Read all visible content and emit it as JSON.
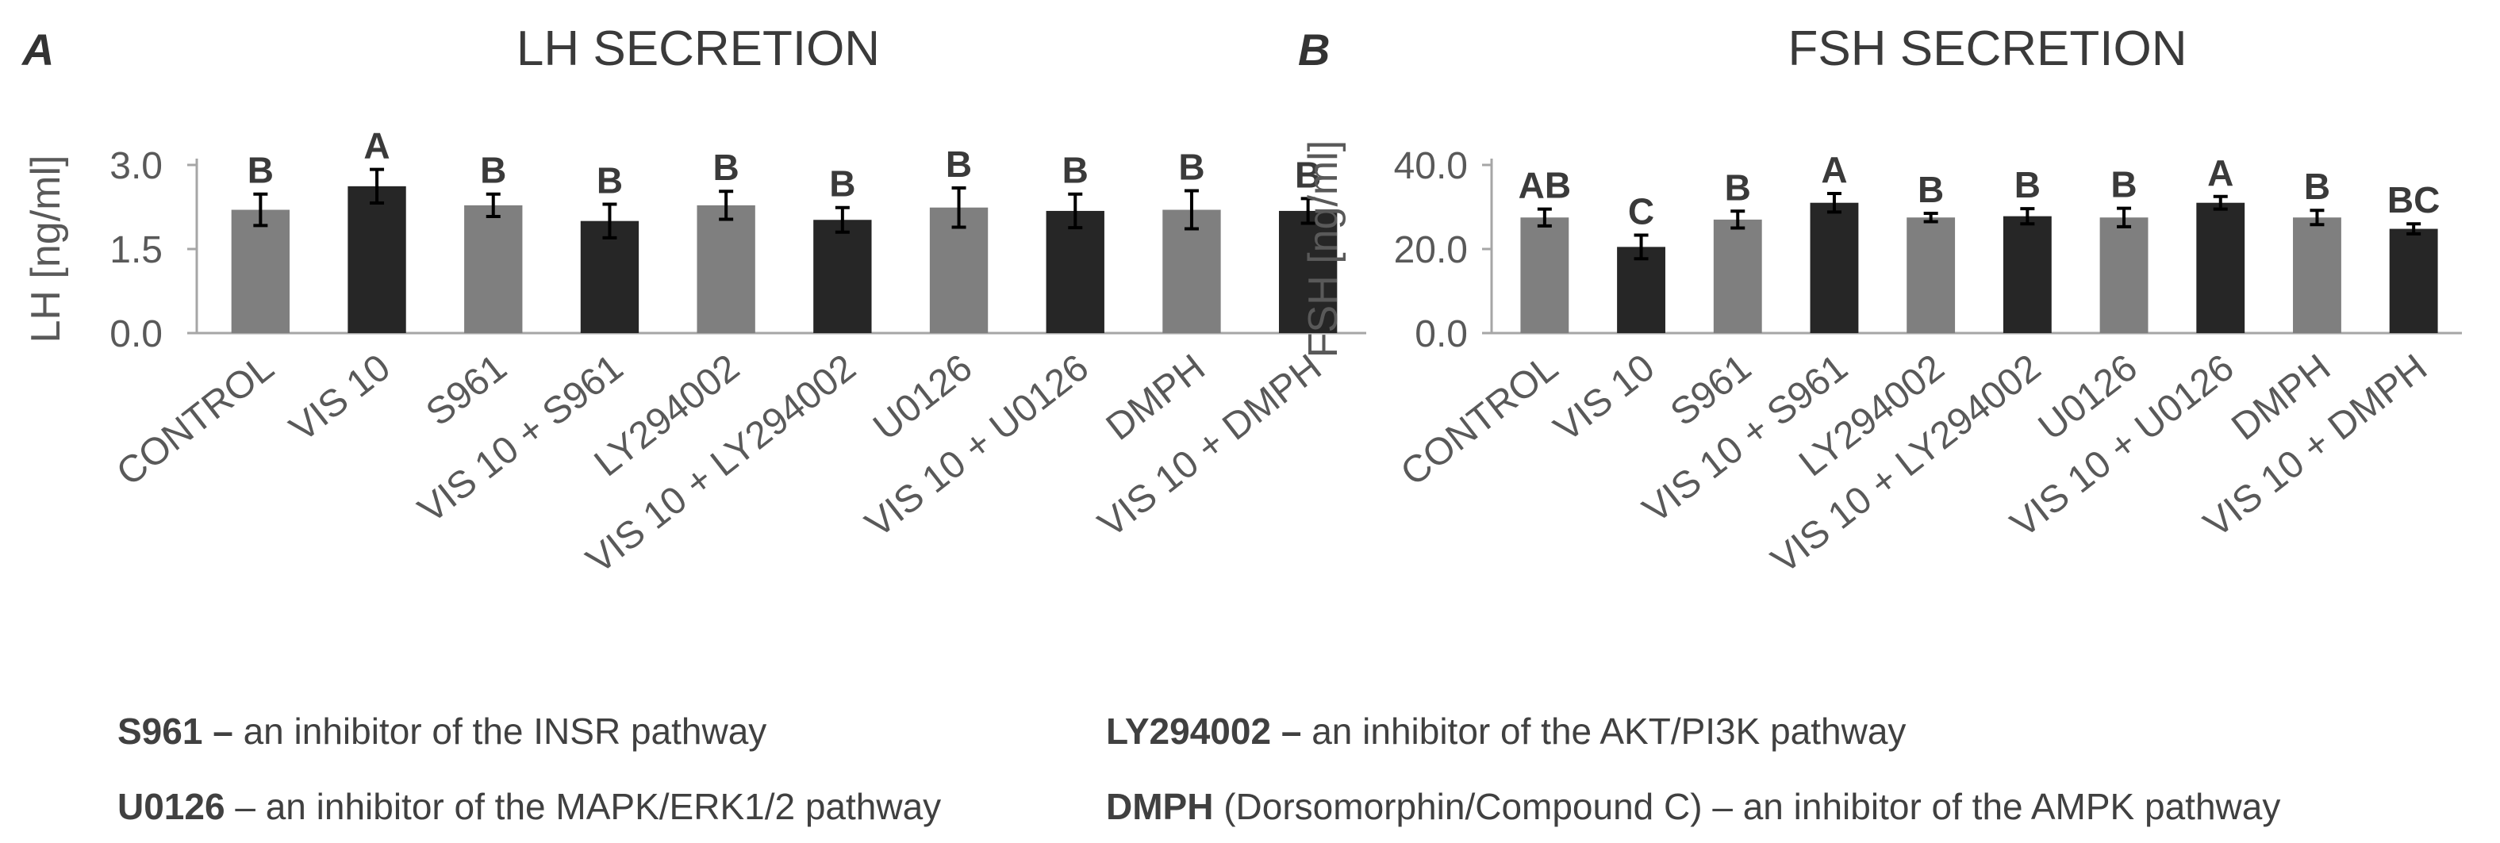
{
  "panels": [
    {
      "letter": "A",
      "title": "LH SECRETION",
      "ylabel": "LH [ng/ml]",
      "ylim": [
        0,
        3.0
      ],
      "yticks": [
        "0.0",
        "1.5",
        "3.0"
      ],
      "ytick_values": [
        0,
        1.5,
        3.0
      ]
    },
    {
      "letter": "B",
      "title": "FSH SECRETION",
      "ylabel": "FSH [ng/ml]",
      "ylim": [
        0,
        40.0
      ],
      "yticks": [
        "0.0",
        "20.0",
        "40.0"
      ],
      "ytick_values": [
        0,
        20,
        40
      ]
    }
  ],
  "chart_data": [
    {
      "type": "bar",
      "title": "LH SECRETION",
      "ylabel": "LH [ng/ml]",
      "ylim": [
        0,
        3.0
      ],
      "categories": [
        "CONTROL",
        "VIS 10",
        "S961",
        "VIS 10 + S961",
        "LY294002",
        "VIS 10 + LY294002",
        "U0126",
        "VIS 10 + U0126",
        "DMPH",
        "VIS 10 + DMPH"
      ],
      "values": [
        2.2,
        2.62,
        2.28,
        2.0,
        2.28,
        2.02,
        2.24,
        2.18,
        2.2,
        2.18
      ],
      "errors": [
        0.28,
        0.3,
        0.2,
        0.3,
        0.25,
        0.22,
        0.35,
        0.3,
        0.34,
        0.22
      ],
      "significance": [
        "B",
        "A",
        "B",
        "B",
        "B",
        "B",
        "B",
        "B",
        "B",
        "B"
      ],
      "colors": [
        "#7f7f7f",
        "#262626",
        "#7f7f7f",
        "#262626",
        "#7f7f7f",
        "#262626",
        "#7f7f7f",
        "#262626",
        "#7f7f7f",
        "#262626"
      ],
      "grid": false
    },
    {
      "type": "bar",
      "title": "FSH SECRETION",
      "ylabel": "FSH [ng/ml]",
      "ylim": [
        0,
        40.0
      ],
      "categories": [
        "CONTROL",
        "VIS 10",
        "S961",
        "VIS 10 + S961",
        "LY294002",
        "VIS 10 + LY294002",
        "U0126",
        "VIS 10 + U0126",
        "DMPH",
        "VIS 10 + DMPH"
      ],
      "values": [
        27.5,
        20.5,
        27.0,
        31.0,
        27.5,
        27.8,
        27.5,
        31.0,
        27.5,
        24.8
      ],
      "errors": [
        2.0,
        2.8,
        2.0,
        2.2,
        1.0,
        1.8,
        2.2,
        1.5,
        1.7,
        1.2
      ],
      "significance": [
        "AB",
        "C",
        "B",
        "A",
        "B",
        "B",
        "B",
        "A",
        "B",
        "BC"
      ],
      "colors": [
        "#7f7f7f",
        "#262626",
        "#7f7f7f",
        "#262626",
        "#7f7f7f",
        "#262626",
        "#7f7f7f",
        "#262626",
        "#7f7f7f",
        "#262626"
      ],
      "grid": false
    }
  ],
  "legend": [
    {
      "abbr": "S961 –",
      "text": " an inhibitor of the INSR pathway"
    },
    {
      "abbr": "LY294002 –",
      "text": " an inhibitor of the AKT/PI3K pathway"
    },
    {
      "abbr": "U0126",
      "text": " – an inhibitor of the MAPK/ERK1/2 pathway"
    },
    {
      "abbr": "DMPH",
      "text": " (Dorsomorphin/Compound C) – an inhibitor of the AMPK pathway"
    }
  ]
}
